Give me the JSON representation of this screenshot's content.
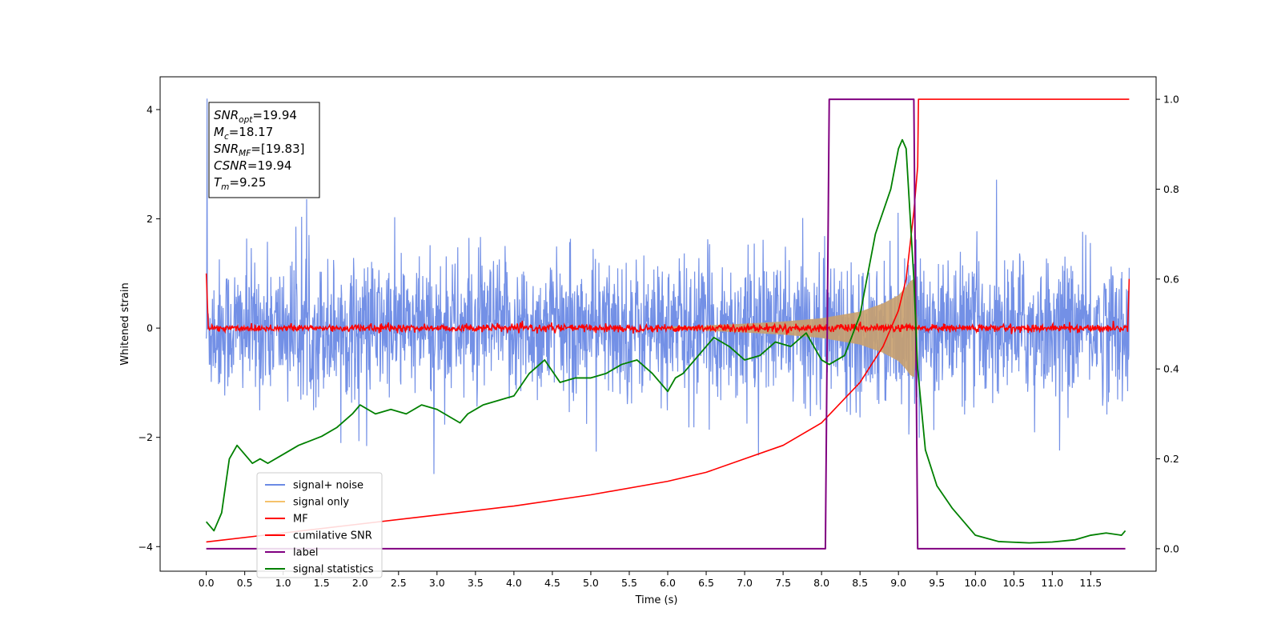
{
  "chart_data": {
    "type": "line",
    "xlabel": "Time (s)",
    "ylabel": "Whitened strain",
    "xlim": [
      -0.6,
      12.35
    ],
    "ylim": [
      -4.45,
      4.6
    ],
    "y2lim": [
      -0.05,
      1.05
    ],
    "xticks": [
      "0.0",
      "0.5",
      "1.0",
      "1.5",
      "2.0",
      "2.5",
      "3.0",
      "3.5",
      "4.0",
      "4.5",
      "5.0",
      "5.5",
      "6.0",
      "6.5",
      "7.0",
      "7.5",
      "8.0",
      "8.5",
      "9.0",
      "9.5",
      "10.0",
      "10.5",
      "11.0",
      "11.5"
    ],
    "yticks": [
      "4",
      "2",
      "0",
      "−2",
      "−4"
    ],
    "y2ticks": [
      "1.0",
      "0.8",
      "0.6",
      "0.4",
      "0.2",
      "0.0"
    ],
    "colors": {
      "signal_noise": "#6b8ae5",
      "signal_only": "#f5c26b",
      "mf": "#ff0000",
      "cumulative_snr": "#ff0000",
      "label": "#800080",
      "signal_statistics": "#008000",
      "chirp_fill": "#c8a06e"
    },
    "info_box": [
      {
        "main": "SNR",
        "sub": "opt",
        "value": "=19.94"
      },
      {
        "main": "M",
        "sub": "c",
        "value": "=18.17"
      },
      {
        "main": "SNR",
        "sub": "MF",
        "value": "=[19.83]"
      },
      {
        "main": "CSNR",
        "sub": "",
        "value": "=19.94"
      },
      {
        "main": "T",
        "sub": "m",
        "value": "=9.25"
      }
    ],
    "legend": [
      "signal+ noise",
      "signal only",
      "MF",
      "cumilative SNR",
      "label",
      "signal statistics"
    ],
    "legend_placement": "lower-left",
    "series": [
      {
        "name": "signal+ noise",
        "axis": "left",
        "description_values": {
          "x_range": [
            0.0,
            12.0
          ],
          "typical_band": [
            -1.5,
            1.6
          ],
          "max": 4.2,
          "min": -3.0
        }
      },
      {
        "name": "signal only",
        "axis": "left",
        "envelope": {
          "x": [
            6.5,
            7.0,
            7.5,
            8.0,
            8.5,
            8.8,
            9.0,
            9.1,
            9.15,
            9.2,
            9.25
          ],
          "amp": [
            0.05,
            0.08,
            0.12,
            0.18,
            0.3,
            0.45,
            0.6,
            0.75,
            0.85,
            0.9,
            0.0
          ]
        }
      },
      {
        "name": "MF",
        "axis": "left",
        "description_values": {
          "x_range": [
            0.0,
            12.0
          ],
          "start": 1.0,
          "end": 0.9,
          "band": [
            -0.1,
            0.1
          ]
        }
      },
      {
        "name": "cumilative SNR",
        "axis": "right",
        "x": [
          0.0,
          1.0,
          2.0,
          3.0,
          4.0,
          5.0,
          6.0,
          6.5,
          7.0,
          7.5,
          8.0,
          8.5,
          8.8,
          9.0,
          9.1,
          9.2,
          9.25,
          9.26,
          12.0
        ],
        "y": [
          0.015,
          0.035,
          0.055,
          0.075,
          0.095,
          0.12,
          0.15,
          0.17,
          0.2,
          0.23,
          0.28,
          0.37,
          0.45,
          0.53,
          0.6,
          0.75,
          0.85,
          1.0,
          1.0
        ]
      },
      {
        "name": "label",
        "axis": "right",
        "x": [
          0.0,
          8.05,
          8.1,
          9.2,
          9.25,
          11.95
        ],
        "y": [
          0.0,
          0.0,
          1.0,
          1.0,
          0.0,
          0.0
        ]
      },
      {
        "name": "signal statistics",
        "axis": "right",
        "x": [
          0.0,
          0.1,
          0.2,
          0.3,
          0.4,
          0.5,
          0.6,
          0.7,
          0.8,
          1.0,
          1.2,
          1.5,
          1.7,
          1.9,
          2.0,
          2.2,
          2.4,
          2.6,
          2.8,
          3.0,
          3.2,
          3.3,
          3.4,
          3.6,
          3.8,
          4.0,
          4.2,
          4.4,
          4.6,
          4.8,
          5.0,
          5.2,
          5.4,
          5.6,
          5.8,
          6.0,
          6.1,
          6.2,
          6.4,
          6.6,
          6.8,
          7.0,
          7.2,
          7.4,
          7.6,
          7.8,
          8.0,
          8.1,
          8.3,
          8.5,
          8.7,
          8.9,
          9.0,
          9.05,
          9.1,
          9.2,
          9.25,
          9.35,
          9.5,
          9.7,
          10.0,
          10.3,
          10.7,
          11.0,
          11.3,
          11.5,
          11.7,
          11.9,
          11.95
        ],
        "y": [
          0.06,
          0.04,
          0.08,
          0.2,
          0.23,
          0.21,
          0.19,
          0.2,
          0.19,
          0.21,
          0.23,
          0.25,
          0.27,
          0.3,
          0.32,
          0.3,
          0.31,
          0.3,
          0.32,
          0.31,
          0.29,
          0.28,
          0.3,
          0.32,
          0.33,
          0.34,
          0.39,
          0.42,
          0.37,
          0.38,
          0.38,
          0.39,
          0.41,
          0.42,
          0.39,
          0.35,
          0.38,
          0.39,
          0.43,
          0.47,
          0.45,
          0.42,
          0.43,
          0.46,
          0.45,
          0.48,
          0.42,
          0.41,
          0.43,
          0.52,
          0.7,
          0.8,
          0.89,
          0.91,
          0.89,
          0.6,
          0.4,
          0.22,
          0.14,
          0.09,
          0.03,
          0.016,
          0.013,
          0.015,
          0.02,
          0.03,
          0.035,
          0.03,
          0.04
        ]
      }
    ]
  }
}
